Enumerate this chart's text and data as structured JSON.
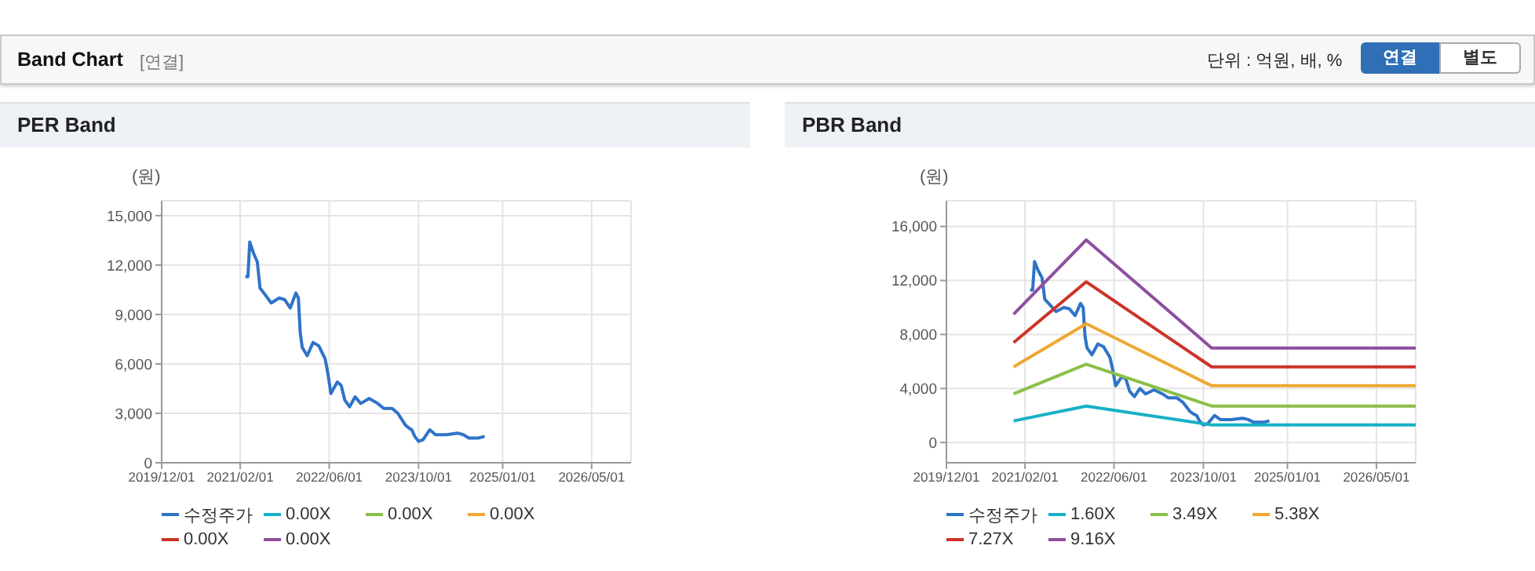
{
  "chart_data": [
    {
      "type": "line",
      "title": "PER Band",
      "ylabel": "(원)",
      "annotations": [
        "Band Chart",
        "[연결]",
        "단위 : 억원, 배, %",
        "연결",
        "별도"
      ],
      "x": [
        "2021-03-01",
        "2021-03-15",
        "2021-03-25",
        "2021-04-15",
        "2021-05-05",
        "2021-05-20",
        "2021-06-10",
        "2021-07-20",
        "2021-09-01",
        "2021-10-01",
        "2021-11-01",
        "2021-12-01",
        "2021-12-15",
        "2021-12-25",
        "2022-01-05",
        "2022-02-01",
        "2022-03-05",
        "2022-04-05",
        "2022-05-10",
        "2022-05-25",
        "2022-06-10",
        "2022-07-15",
        "2022-08-05",
        "2022-08-25",
        "2022-09-20",
        "2022-10-20",
        "2022-11-20",
        "2023-01-05",
        "2023-02-20",
        "2023-03-25",
        "2023-05-10",
        "2023-06-10",
        "2023-07-20",
        "2023-08-10",
        "2023-08-25",
        "2023-09-10",
        "2023-10-01",
        "2023-10-25",
        "2023-12-01",
        "2024-01-01",
        "2024-03-01",
        "2024-05-01",
        "2024-06-01",
        "2024-07-01",
        "2024-08-20",
        "2024-09-25"
      ],
      "series": [
        {
          "name": "수정주가",
          "color": "#2f73c8",
          "values": [
            11300,
            11300,
            13400,
            12700,
            12200,
            10600,
            10300,
            9700,
            10000,
            9900,
            9400,
            10300,
            10000,
            7900,
            7000,
            6500,
            7300,
            7100,
            6300,
            5400,
            4200,
            4900,
            4700,
            3800,
            3400,
            4000,
            3600,
            3900,
            3600,
            3300,
            3300,
            3000,
            2300,
            2100,
            2000,
            1600,
            1300,
            1400,
            2000,
            1700,
            1700,
            1800,
            1700,
            1500,
            1500,
            1600
          ]
        },
        {
          "name": "0.00X",
          "color": "#17b1c6",
          "values": [
            null,
            null,
            null,
            null,
            null,
            null,
            null,
            null,
            null,
            null,
            null,
            null,
            null,
            null,
            null,
            null,
            null,
            null,
            null,
            null,
            null,
            null,
            null,
            null,
            null,
            null,
            null,
            null,
            null,
            null,
            null,
            null,
            null,
            null,
            null,
            null,
            null,
            null,
            null,
            null,
            null,
            null,
            null,
            null,
            null,
            null
          ]
        },
        {
          "name": "0.00X",
          "color": "#8cbf4a",
          "values": [
            null,
            null,
            null,
            null,
            null,
            null,
            null,
            null,
            null,
            null,
            null,
            null,
            null,
            null,
            null,
            null,
            null,
            null,
            null,
            null,
            null,
            null,
            null,
            null,
            null,
            null,
            null,
            null,
            null,
            null,
            null,
            null,
            null,
            null,
            null,
            null,
            null,
            null,
            null,
            null,
            null,
            null,
            null,
            null,
            null,
            null
          ]
        },
        {
          "name": "0.00X",
          "color": "#f0a830",
          "values": [
            null,
            null,
            null,
            null,
            null,
            null,
            null,
            null,
            null,
            null,
            null,
            null,
            null,
            null,
            null,
            null,
            null,
            null,
            null,
            null,
            null,
            null,
            null,
            null,
            null,
            null,
            null,
            null,
            null,
            null,
            null,
            null,
            null,
            null,
            null,
            null,
            null,
            null,
            null,
            null,
            null,
            null,
            null,
            null,
            null,
            null
          ]
        },
        {
          "name": "0.00X",
          "color": "#cc3328",
          "values": [
            null,
            null,
            null,
            null,
            null,
            null,
            null,
            null,
            null,
            null,
            null,
            null,
            null,
            null,
            null,
            null,
            null,
            null,
            null,
            null,
            null,
            null,
            null,
            null,
            null,
            null,
            null,
            null,
            null,
            null,
            null,
            null,
            null,
            null,
            null,
            null,
            null,
            null,
            null,
            null,
            null,
            null,
            null,
            null,
            null,
            null
          ]
        },
        {
          "name": "0.00X",
          "color": "#8e4f9e",
          "values": [
            null,
            null,
            null,
            null,
            null,
            null,
            null,
            null,
            null,
            null,
            null,
            null,
            null,
            null,
            null,
            null,
            null,
            null,
            null,
            null,
            null,
            null,
            null,
            null,
            null,
            null,
            null,
            null,
            null,
            null,
            null,
            null,
            null,
            null,
            null,
            null,
            null,
            null,
            null,
            null,
            null,
            null,
            null,
            null,
            null,
            null
          ]
        }
      ],
      "xlim": [
        "2019-12-01",
        "2026-12-01"
      ],
      "xticks": [
        {
          "value": "2019-12-01",
          "label": "2019/12/01"
        },
        {
          "value": "2021-02-01",
          "label": "2021/02/01"
        },
        {
          "value": "2022-06-01",
          "label": "2022/06/01"
        },
        {
          "value": "2023-10-01",
          "label": "2023/10/01"
        },
        {
          "value": "2025-01-01",
          "label": "2025/01/01"
        },
        {
          "value": "2026-05-01",
          "label": "2026/05/01"
        }
      ],
      "ylim": [
        0,
        15900
      ],
      "yticks": [
        0,
        {
          "value": 3000,
          "label": "3,000"
        },
        {
          "value": 6000,
          "label": "6,000"
        },
        {
          "value": 9000,
          "label": "9,000"
        },
        {
          "value": 12000,
          "label": "12,000"
        },
        {
          "value": 15000,
          "label": "15,000"
        }
      ],
      "grid": true,
      "legend": "bottom",
      "marker": "none",
      "line_style": "solid"
    },
    {
      "type": "line",
      "title": "PBR Band",
      "ylabel": "(원)",
      "x": [
        "2021-03-01",
        "2021-03-15",
        "2021-03-25",
        "2021-04-15",
        "2021-05-05",
        "2021-05-20",
        "2021-06-10",
        "2021-07-20",
        "2021-09-01",
        "2021-10-01",
        "2021-11-01",
        "2021-12-01",
        "2021-12-15",
        "2021-12-25",
        "2022-01-05",
        "2022-02-01",
        "2022-03-05",
        "2022-04-05",
        "2022-05-10",
        "2022-05-25",
        "2022-06-10",
        "2022-07-15",
        "2022-08-05",
        "2022-08-25",
        "2022-09-20",
        "2022-10-20",
        "2022-11-20",
        "2023-01-05",
        "2023-02-20",
        "2023-03-25",
        "2023-05-10",
        "2023-06-10",
        "2023-07-20",
        "2023-08-10",
        "2023-08-25",
        "2023-09-10",
        "2023-10-01",
        "2023-10-25",
        "2023-12-01",
        "2024-01-01",
        "2024-03-01",
        "2024-05-01",
        "2024-06-01",
        "2024-07-01",
        "2024-08-20",
        "2024-09-25"
      ],
      "series": [
        {
          "name": "수정주가",
          "color": "#2f73c8",
          "values": [
            11300,
            11300,
            13400,
            12700,
            12200,
            10600,
            10300,
            9700,
            10000,
            9900,
            9400,
            10300,
            10000,
            7900,
            7000,
            6500,
            7300,
            7100,
            6300,
            5400,
            4200,
            4900,
            4700,
            3800,
            3400,
            4000,
            3600,
            3900,
            3600,
            3300,
            3300,
            3000,
            2300,
            2100,
            2000,
            1600,
            1300,
            1400,
            2000,
            1700,
            1700,
            1800,
            1700,
            1500,
            1500,
            1600
          ]
        },
        {
          "name": "1.60X",
          "color": "#17b1c6",
          "x": [
            "2020-12-01",
            "2022-01-01",
            "2023-11-15",
            "2026-12-01"
          ],
          "values": [
            1600,
            2700,
            1300,
            1300
          ]
        },
        {
          "name": "3.49X",
          "color": "#8cbf4a",
          "x": [
            "2020-12-01",
            "2022-01-01",
            "2023-11-15",
            "2026-12-01"
          ],
          "values": [
            3600,
            5800,
            2700,
            2700
          ]
        },
        {
          "name": "5.38X",
          "color": "#f0a830",
          "x": [
            "2020-12-01",
            "2022-01-01",
            "2023-11-15",
            "2026-12-01"
          ],
          "values": [
            5600,
            8800,
            4200,
            4200
          ]
        },
        {
          "name": "7.27X",
          "color": "#cc3328",
          "x": [
            "2020-12-01",
            "2022-01-01",
            "2023-11-15",
            "2026-12-01"
          ],
          "values": [
            7400,
            11900,
            5600,
            5600
          ]
        },
        {
          "name": "9.16X",
          "color": "#8e4f9e",
          "x": [
            "2020-12-01",
            "2022-01-01",
            "2023-11-15",
            "2026-12-01"
          ],
          "values": [
            9500,
            15000,
            7000,
            7000
          ]
        }
      ],
      "xlim": [
        "2019-12-01",
        "2026-12-01"
      ],
      "xticks": [
        {
          "value": "2019-12-01",
          "label": "2019/12/01"
        },
        {
          "value": "2021-02-01",
          "label": "2021/02/01"
        },
        {
          "value": "2022-06-01",
          "label": "2022/06/01"
        },
        {
          "value": "2023-10-01",
          "label": "2023/10/01"
        },
        {
          "value": "2025-01-01",
          "label": "2025/01/01"
        },
        {
          "value": "2026-05-01",
          "label": "2026/05/01"
        }
      ],
      "ylim": [
        -1500,
        17900
      ],
      "yticks": [
        0,
        {
          "value": 4000,
          "label": "4,000"
        },
        {
          "value": 8000,
          "label": "8,000"
        },
        {
          "value": 12000,
          "label": "12,000"
        },
        {
          "value": 16000,
          "label": "16,000"
        }
      ],
      "grid": true,
      "legend": "bottom",
      "marker": "none",
      "line_style": "solid"
    }
  ]
}
